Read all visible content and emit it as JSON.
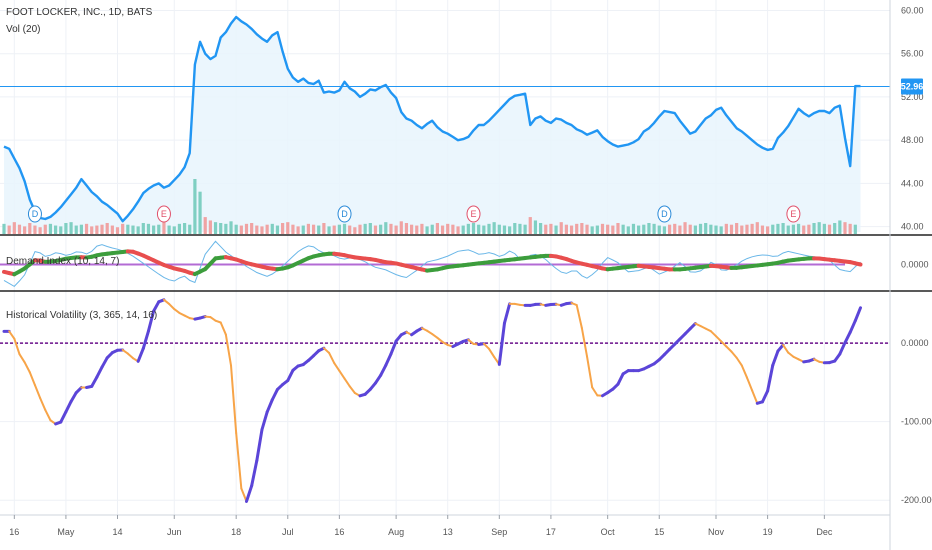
{
  "title": "FOOT LOCKER, INC., 1D, BATS",
  "colors": {
    "price_line": "#2196f3",
    "price_fill": "#e8f4fd",
    "vol_up": "#7fcfc2",
    "vol_down": "#f0a3a3",
    "demand_up": "#3c9d3c",
    "demand_down": "#e84e4e",
    "demand_thin": "#6ab7e8",
    "demand_zero": "#b36bd4",
    "hv_rising": "#5b45d8",
    "hv_falling": "#f7a448",
    "hv_zero": "#6a0f8a",
    "divider": "#222222",
    "grid": "#eef1f6",
    "text": "#555555"
  },
  "chart_data": [
    {
      "type": "line",
      "title": "FOOT LOCKER, INC., 1D, BATS",
      "ylim": [
        39.5,
        60.6
      ],
      "y_ticks": [
        "40.00",
        "44.00",
        "48.00",
        "52.00",
        "56.00",
        "60.00"
      ],
      "last_price_label": "52.96",
      "last_price": 52.96,
      "series": [
        {
          "values": [
            47.4,
            47.2,
            46.3,
            45.4,
            44.2,
            42.5,
            41.4,
            40.8,
            40.7,
            40.9,
            41.3,
            41.8,
            42.4,
            43.0,
            43.6,
            44.4,
            43.8,
            43.2,
            42.8,
            42.3,
            42.0,
            41.6,
            41.2,
            40.5,
            41.0,
            41.6,
            42.3,
            43.1,
            43.5,
            43.8,
            44.0,
            43.6,
            43.8,
            44.3,
            44.8,
            45.5,
            46.8,
            55.0,
            57.1,
            56.0,
            55.5,
            55.8,
            57.5,
            58.0,
            58.8,
            59.4,
            59.0,
            58.7,
            58.3,
            57.8,
            57.4,
            57.1,
            57.7,
            58.0,
            56.2,
            54.6,
            53.8,
            53.4,
            53.7,
            53.3,
            53.2,
            53.5,
            52.4,
            52.5,
            52.4,
            52.6,
            53.4,
            52.8,
            52.5,
            52.0,
            52.3,
            52.7,
            52.6,
            52.9,
            53.1,
            52.4,
            51.9,
            50.6,
            50.0,
            49.8,
            49.4,
            49.1,
            49.5,
            49.8,
            49.2,
            48.8,
            48.6,
            48.3,
            48.0,
            48.1,
            48.3,
            48.9,
            49.4,
            49.4,
            49.8,
            50.3,
            50.8,
            51.3,
            51.8,
            52.1,
            52.2,
            52.3,
            49.4,
            50.0,
            50.2,
            49.8,
            49.6,
            50.0,
            49.9,
            49.6,
            49.4,
            49.0,
            48.8,
            48.5,
            48.7,
            48.9,
            48.3,
            47.9,
            47.6,
            47.4,
            47.5,
            47.6,
            47.8,
            48.1,
            48.8,
            49.1,
            49.6,
            50.2,
            50.7,
            50.6,
            50.5,
            49.8,
            49.2,
            48.6,
            48.8,
            49.4,
            50.0,
            50.3,
            50.8,
            51.0,
            50.3,
            49.7,
            49.1,
            48.8,
            48.4,
            48.0,
            47.6,
            47.3,
            47.1,
            47.2,
            48.2,
            48.7,
            49.3,
            50.1,
            50.9,
            50.5,
            50.2,
            50.5,
            50.7,
            50.7,
            50.5,
            51.0,
            51.2,
            48.2,
            45.6,
            53.0,
            53.0
          ]
        }
      ]
    },
    {
      "type": "bar",
      "title": "Vol (20)",
      "values": [
        1.2,
        1.0,
        1.4,
        1.1,
        0.9,
        1.3,
        1.0,
        0.8,
        1.1,
        1.2,
        1.0,
        0.9,
        1.3,
        1.4,
        1.0,
        1.1,
        1.2,
        0.9,
        1.0,
        1.1,
        1.3,
        1.0,
        0.8,
        1.2,
        1.1,
        1.0,
        0.9,
        1.3,
        1.2,
        1.0,
        1.1,
        1.4,
        1.0,
        0.9,
        1.2,
        1.3,
        1.1,
        6.5,
        5.0,
        2.0,
        1.6,
        1.4,
        1.3,
        1.2,
        1.5,
        1.1,
        1.0,
        1.2,
        1.3,
        1.0,
        0.9,
        1.1,
        1.2,
        1.0,
        1.3,
        1.4,
        1.1,
        0.9,
        1.0,
        1.2,
        1.1,
        1.0,
        1.3,
        0.9,
        1.0,
        1.1,
        1.2,
        1.0,
        0.8,
        1.1,
        1.2,
        1.3,
        1.0,
        1.1,
        1.4,
        1.2,
        1.0,
        1.5,
        1.3,
        1.1,
        1.0,
        1.2,
        0.9,
        1.1,
        1.3,
        1.0,
        1.2,
        1.1,
        0.9,
        1.0,
        1.2,
        1.3,
        1.1,
        1.0,
        1.2,
        1.4,
        1.1,
        1.0,
        0.9,
        1.3,
        1.2,
        1.1,
        2.0,
        1.6,
        1.3,
        1.1,
        1.2,
        1.0,
        1.4,
        1.1,
        1.0,
        1.2,
        1.3,
        1.1,
        0.9,
        1.0,
        1.2,
        1.1,
        1.0,
        1.3,
        1.1,
        0.9,
        1.2,
        1.0,
        1.1,
        1.3,
        1.2,
        1.0,
        0.9,
        1.1,
        1.2,
        1.0,
        1.4,
        1.1,
        1.0,
        1.2,
        1.3,
        1.1,
        1.0,
        0.9,
        1.2,
        1.1,
        1.3,
        1.0,
        1.1,
        1.2,
        1.4,
        1.0,
        0.9,
        1.1,
        1.2,
        1.3,
        1.0,
        1.1,
        1.2,
        1.0,
        1.1,
        1.3,
        1.4,
        1.2,
        1.1,
        1.3,
        1.6,
        1.4,
        1.2,
        1.1
      ]
    },
    {
      "type": "line",
      "title": "Demand Index (10, 14, 7)",
      "ylim": [
        -1,
        1
      ],
      "y_ticks": [
        "0.0000"
      ],
      "zero_value": 0,
      "series": [
        {
          "values": [
            -0.3,
            -0.4,
            -0.15,
            0.2,
            0.1,
            0.15,
            0.25,
            0.3,
            0.28,
            0.4,
            0.45,
            0.5,
            0.55,
            0.4,
            0.2,
            0.0,
            -0.15,
            -0.25,
            -0.4,
            -0.2,
            0.25,
            0.3,
            0.2,
            0.05,
            -0.05,
            -0.15,
            -0.2,
            -0.1,
            0.1,
            0.3,
            0.4,
            0.45,
            0.4,
            0.3,
            0.25,
            0.2,
            0.1,
            0.05,
            -0.05,
            -0.15,
            -0.25,
            -0.2,
            -0.1,
            -0.05,
            0.0,
            0.05,
            0.1,
            0.15,
            0.2,
            0.25,
            0.3,
            0.35,
            0.35,
            0.25,
            0.1,
            0.0,
            -0.1,
            -0.2,
            -0.15,
            -0.1,
            -0.05,
            -0.1,
            -0.15,
            -0.2,
            -0.2,
            -0.15,
            -0.1,
            -0.05,
            -0.1,
            -0.15,
            -0.1,
            -0.05,
            0.0,
            0.05,
            0.15,
            0.2,
            0.25,
            0.25,
            0.2,
            0.15,
            0.1,
            0.0
          ]
        },
        {
          "values": [
            -0.65,
            -0.9,
            -0.4,
            0.6,
            0.3,
            0.5,
            0.35,
            0.55,
            0.4,
            0.85,
            0.7,
            0.6,
            0.4,
            0.1,
            -0.2,
            -0.5,
            -0.7,
            -0.45,
            -0.8,
            0.4,
            0.95,
            0.5,
            0.2,
            -0.1,
            -0.35,
            -0.5,
            -0.2,
            0.2,
            0.6,
            0.8,
            0.5,
            0.4,
            0.2,
            0.3,
            0.15,
            -0.1,
            -0.2,
            -0.4,
            -0.55,
            -0.25,
            0.1,
            0.2,
            0.35,
            0.55,
            0.6,
            0.4,
            0.5,
            0.3,
            0.6,
            0.1,
            0.45,
            0.3,
            -0.1,
            -0.4,
            -0.2,
            -0.6,
            -0.3,
            0.3,
            0.1,
            -0.3,
            -0.25,
            -0.1,
            -0.4,
            -0.2,
            0.1,
            -0.35,
            -0.25,
            0.15,
            -0.3,
            -0.1,
            0.2,
            0.35,
            0.4,
            0.3,
            0.55,
            0.45,
            0.35,
            0.3,
            0.2,
            -0.2,
            -0.3,
            0.1
          ]
        }
      ]
    },
    {
      "type": "line",
      "title": "Historical Volatility (3, 365, 14, 16)",
      "ylim": [
        -215,
        60
      ],
      "y_ticks": [
        "0.0000",
        "-100.0000",
        "-200.0000"
      ],
      "zero_value": 0,
      "series": [
        {
          "values": [
            15,
            15,
            -15,
            -30,
            -55,
            -80,
            -100,
            -105,
            -85,
            -65,
            -55,
            -58,
            -40,
            -20,
            -10,
            -8,
            -15,
            -25,
            0,
            40,
            58,
            50,
            40,
            35,
            30,
            32,
            35,
            28,
            25,
            -35,
            -180,
            -205,
            -160,
            -100,
            -75,
            -55,
            -50,
            -30,
            -28,
            -20,
            -10,
            -5,
            -25,
            -40,
            -55,
            -68,
            -65,
            -55,
            -40,
            -20,
            5,
            15,
            10,
            20,
            15,
            8,
            0,
            -5,
            0,
            5,
            -3,
            0,
            -10,
            -30,
            50,
            50,
            48,
            48,
            50,
            48,
            50,
            48,
            52,
            48,
            -5,
            -65,
            -68,
            -62,
            -55,
            -35,
            -35,
            -35,
            -30,
            -25,
            -15,
            -5,
            5,
            15,
            25,
            20,
            15,
            5,
            -5,
            -15,
            -30,
            -55,
            -80,
            -70,
            -20,
            0,
            -15,
            -20,
            -25,
            -20,
            -25,
            -25,
            -22,
            0,
            20,
            45
          ]
        }
      ]
    },
    {
      "type": "axis",
      "x_tick_labels": [
        "16",
        "May",
        "14",
        "Jun",
        "18",
        "Jul",
        "16",
        "Aug",
        "13",
        "Sep",
        "17",
        "Oct",
        "15",
        "Nov",
        "19",
        "Dec"
      ],
      "x_tick_indices": [
        2,
        12,
        22,
        33,
        45,
        55,
        65,
        76,
        86,
        96,
        106,
        117,
        127,
        138,
        148,
        159
      ],
      "x_domain": [
        0,
        163
      ]
    },
    {
      "type": "annotations",
      "events": [
        {
          "label": "D",
          "index": 6,
          "kind": "dividend"
        },
        {
          "label": "E",
          "index": 31,
          "kind": "earnings"
        },
        {
          "label": "D",
          "index": 66,
          "kind": "dividend"
        },
        {
          "label": "E",
          "index": 91,
          "kind": "earnings"
        },
        {
          "label": "D",
          "index": 128,
          "kind": "dividend"
        },
        {
          "label": "E",
          "index": 153,
          "kind": "earnings"
        }
      ]
    }
  ]
}
